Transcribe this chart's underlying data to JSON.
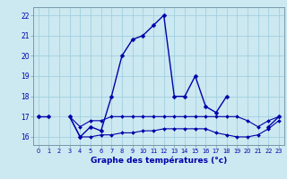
{
  "title": "Graphe des températures (°c)",
  "hours": [
    0,
    1,
    2,
    3,
    4,
    5,
    6,
    7,
    8,
    9,
    10,
    11,
    12,
    13,
    14,
    15,
    16,
    17,
    18,
    19,
    20,
    21,
    22,
    23
  ],
  "y1": [
    17.0,
    17.0,
    null,
    17.0,
    16.0,
    16.5,
    16.3,
    18.0,
    20.0,
    20.8,
    21.0,
    21.5,
    22.0,
    18.0,
    18.0,
    19.0,
    17.5,
    17.2,
    18.0,
    null,
    null,
    null,
    16.5,
    17.0
  ],
  "y2": [
    17.0,
    null,
    null,
    17.0,
    16.5,
    16.8,
    16.8,
    17.0,
    17.0,
    17.0,
    17.0,
    17.0,
    17.0,
    17.0,
    17.0,
    17.0,
    17.0,
    17.0,
    17.0,
    17.0,
    16.8,
    16.5,
    16.8,
    17.0
  ],
  "y3": [
    17.0,
    null,
    null,
    17.0,
    16.0,
    16.0,
    16.1,
    16.1,
    16.2,
    16.2,
    16.3,
    16.3,
    16.4,
    16.4,
    16.4,
    16.4,
    16.4,
    16.2,
    16.1,
    16.0,
    16.0,
    16.1,
    16.4,
    16.8
  ],
  "ylim": [
    15.6,
    22.4
  ],
  "yticks": [
    16,
    17,
    18,
    19,
    20,
    21,
    22
  ],
  "xlim": [
    -0.5,
    23.5
  ],
  "line_color": "#0000aa",
  "bg_color": "#cce8f0",
  "grid_color": "#99ccdd",
  "label_color": "#0000aa",
  "spine_color": "#7799aa"
}
